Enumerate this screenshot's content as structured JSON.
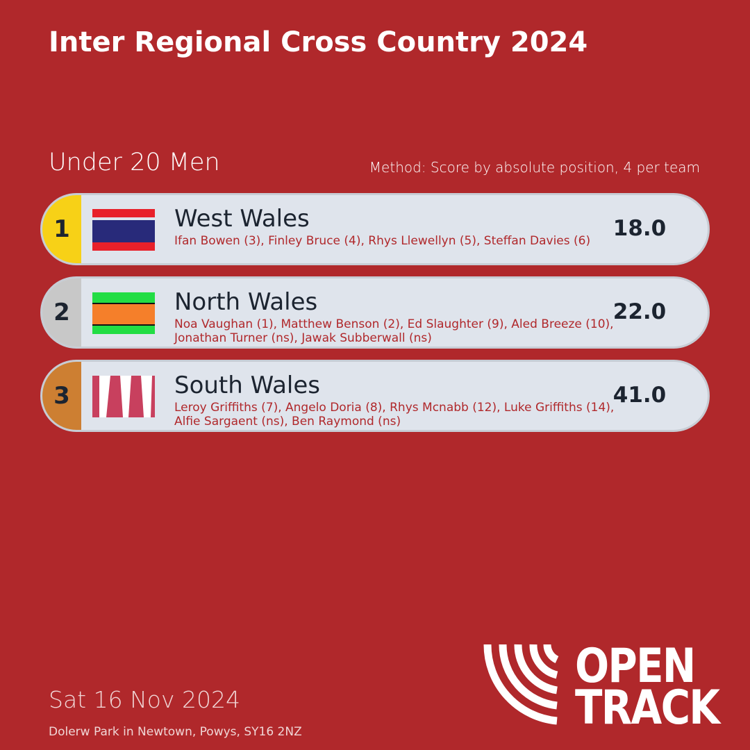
{
  "header": {
    "title": "Inter Regional Cross Country 2024"
  },
  "event": {
    "category": "Under 20 Men",
    "method": "Method: Score by absolute position, 4 per team"
  },
  "teams": [
    {
      "rank": "1",
      "name": "West Wales",
      "members": "Ifan Bowen (3), Finley Bruce (4), Rhys Llewellyn (5), Steffan Davies (6)",
      "score": "18.0"
    },
    {
      "rank": "2",
      "name": "North Wales",
      "members": "Noa Vaughan (1), Matthew Benson (2), Ed Slaughter (9), Aled Breeze (10), Jonathan Turner (ns), Jawak Subberwall (ns)",
      "score": "22.0"
    },
    {
      "rank": "3",
      "name": "South Wales",
      "members": "Leroy Griffiths (7), Angelo Doria (8), Rhys Mcnabb (12), Luke Griffiths (14), Alfie Sargaent (ns), Ben Raymond (ns)",
      "score": "41.0"
    }
  ],
  "footer": {
    "date": "Sat 16 Nov 2024",
    "venue": "Dolerw Park in Newtown, Powys, SY16 2NZ"
  },
  "logo": {
    "line1": "OPEN",
    "line2": "TRACK"
  }
}
